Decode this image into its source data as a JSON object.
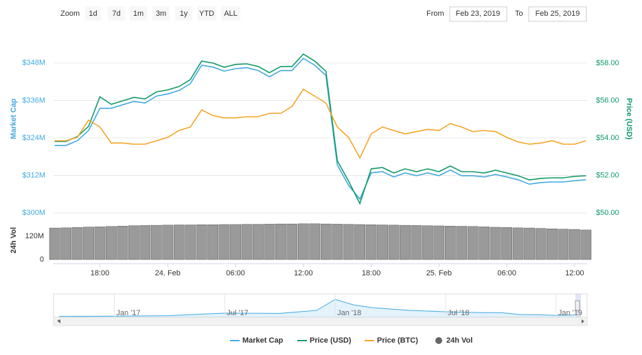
{
  "range_selector": {
    "zoom_label": "Zoom",
    "buttons": [
      "1d",
      "7d",
      "1m",
      "3m",
      "1y",
      "YTD",
      "ALL"
    ],
    "from_label": "From",
    "from": "Feb 23, 2019",
    "to_label": "To",
    "to": "Feb 25, 2019"
  },
  "chart_data": {
    "type": "line",
    "y_label": "Market Cap",
    "y2_label": "Price (USD)",
    "vol_label": "24h Vol",
    "x": [
      14,
      15,
      16,
      17,
      18,
      19,
      20,
      21,
      22,
      23,
      24,
      25,
      26,
      27,
      28,
      29,
      30,
      31,
      32,
      33,
      34,
      35,
      36,
      37,
      38,
      39,
      40,
      41,
      42,
      43,
      44,
      45,
      46,
      47,
      48,
      49,
      50,
      51,
      52,
      53,
      54,
      55,
      56,
      57,
      58,
      59,
      60,
      61
    ],
    "xlim": [
      13.9,
      61.1
    ],
    "xticks": [
      {
        "value": 18,
        "label": "18:00"
      },
      {
        "value": 24,
        "label": "24. Feb"
      },
      {
        "value": 30,
        "label": "06:00"
      },
      {
        "value": 36,
        "label": "12:00"
      },
      {
        "value": 42,
        "label": "18:00"
      },
      {
        "value": 48,
        "label": "25. Feb"
      },
      {
        "value": 54,
        "label": "06:00"
      },
      {
        "value": 60,
        "label": "12:00"
      }
    ],
    "ylim": [
      300,
      355
    ],
    "yticks": [
      {
        "value": 300,
        "label": "$300M"
      },
      {
        "value": 312,
        "label": "$312M"
      },
      {
        "value": 324,
        "label": "$324M"
      },
      {
        "value": 336,
        "label": "$336M"
      },
      {
        "value": 348,
        "label": "$348M"
      }
    ],
    "y2lim": [
      50,
      59.17
    ],
    "y2ticks": [
      {
        "value": 50,
        "label": "$50.00"
      },
      {
        "value": 52,
        "label": "$52.00"
      },
      {
        "value": 54,
        "label": "$54.00"
      },
      {
        "value": 56,
        "label": "$56.00"
      },
      {
        "value": 58,
        "label": "$58.00"
      }
    ],
    "y3lim": [
      0.012,
      0.015
    ],
    "vol_ylim": [
      0,
      187
    ],
    "vol_yticks": [
      0,
      {
        "value": 120,
        "label": "120M"
      }
    ],
    "grid": true,
    "series": [
      {
        "name": "Market Cap",
        "color": "#41a9e1",
        "axis": "y",
        "values": [
          321.6,
          321.6,
          323.1,
          326.4,
          333.5,
          333.5,
          334.6,
          335.7,
          335.2,
          337.4,
          338.1,
          339.2,
          341.4,
          347.3,
          346.7,
          345.4,
          346.2,
          346.5,
          345.6,
          343.6,
          345.6,
          345.6,
          349.5,
          347.3,
          344.0,
          315.4,
          308.8,
          304.4,
          312.8,
          313.2,
          311.5,
          312.8,
          311.9,
          312.8,
          311.9,
          313.7,
          311.9,
          311.9,
          311.5,
          312.3,
          311.5,
          310.6,
          309.2,
          309.7,
          309.9,
          309.9,
          310.3,
          310.6
        ]
      },
      {
        "name": "Price (USD)",
        "color": "#0f9a68",
        "axis": "y2",
        "values": [
          53.82,
          53.82,
          54.07,
          54.62,
          56.2,
          55.8,
          55.98,
          56.17,
          56.09,
          56.46,
          56.57,
          56.75,
          57.12,
          58.11,
          58.0,
          57.78,
          57.93,
          57.96,
          57.82,
          57.49,
          57.82,
          57.82,
          58.48,
          58.11,
          57.56,
          52.79,
          51.69,
          50.5,
          52.35,
          52.42,
          52.13,
          52.35,
          52.2,
          52.35,
          52.2,
          52.5,
          52.2,
          52.2,
          52.13,
          52.28,
          52.13,
          51.98,
          51.76,
          51.84,
          51.87,
          51.87,
          51.95,
          51.98
        ]
      },
      {
        "name": "Price (BTC)",
        "color": "#f5a524",
        "axis": "y3",
        "values": [
          0.01326,
          0.01326,
          0.01332,
          0.01362,
          0.0135,
          0.01322,
          0.01322,
          0.0132,
          0.0132,
          0.01326,
          0.01332,
          0.01344,
          0.0135,
          0.0138,
          0.0137,
          0.01366,
          0.01366,
          0.01368,
          0.01368,
          0.01374,
          0.01374,
          0.01386,
          0.01416,
          0.01404,
          0.01392,
          0.0135,
          0.01332,
          0.01296,
          0.01338,
          0.0135,
          0.01344,
          0.01338,
          0.01342,
          0.01346,
          0.01344,
          0.01356,
          0.0135,
          0.01342,
          0.01344,
          0.01342,
          0.01332,
          0.01324,
          0.0132,
          0.01322,
          0.01326,
          0.0132,
          0.0132,
          0.01326
        ]
      },
      {
        "name": "24h Vol",
        "color": "#555555",
        "axis": "vol",
        "values": [
          162,
          163,
          165,
          167,
          168,
          170,
          172,
          174,
          175,
          176,
          177,
          178,
          178,
          179,
          179,
          180,
          180,
          181,
          181,
          182,
          183,
          183,
          184,
          184,
          183,
          182,
          181,
          180,
          179,
          178,
          177,
          176,
          175,
          174,
          173,
          172,
          171,
          170,
          168,
          166,
          165,
          163,
          162,
          160,
          158,
          156,
          155,
          152
        ]
      }
    ],
    "navigator": {
      "x": [
        9,
        12,
        15,
        18,
        21,
        23,
        24,
        25,
        26,
        27,
        28,
        30,
        31,
        32,
        33,
        34,
        35,
        36,
        37
      ],
      "values": [
        300,
        400,
        600,
        1500,
        1400,
        2500,
        6500,
        4500,
        3500,
        3000,
        2500,
        2000,
        1800,
        1700,
        1700,
        1000,
        900,
        700,
        800
      ],
      "xlim": [
        9.15,
        37.05
      ],
      "ylim": [
        0,
        8000
      ],
      "xticks": [
        {
          "value": 12,
          "label": "Jan '17"
        },
        {
          "value": 18,
          "label": "Jul '17"
        },
        {
          "value": 24,
          "label": "Jan '18"
        },
        {
          "value": 30,
          "label": "Jul '18"
        },
        {
          "value": 36,
          "label": "Jan '19"
        }
      ]
    }
  }
}
